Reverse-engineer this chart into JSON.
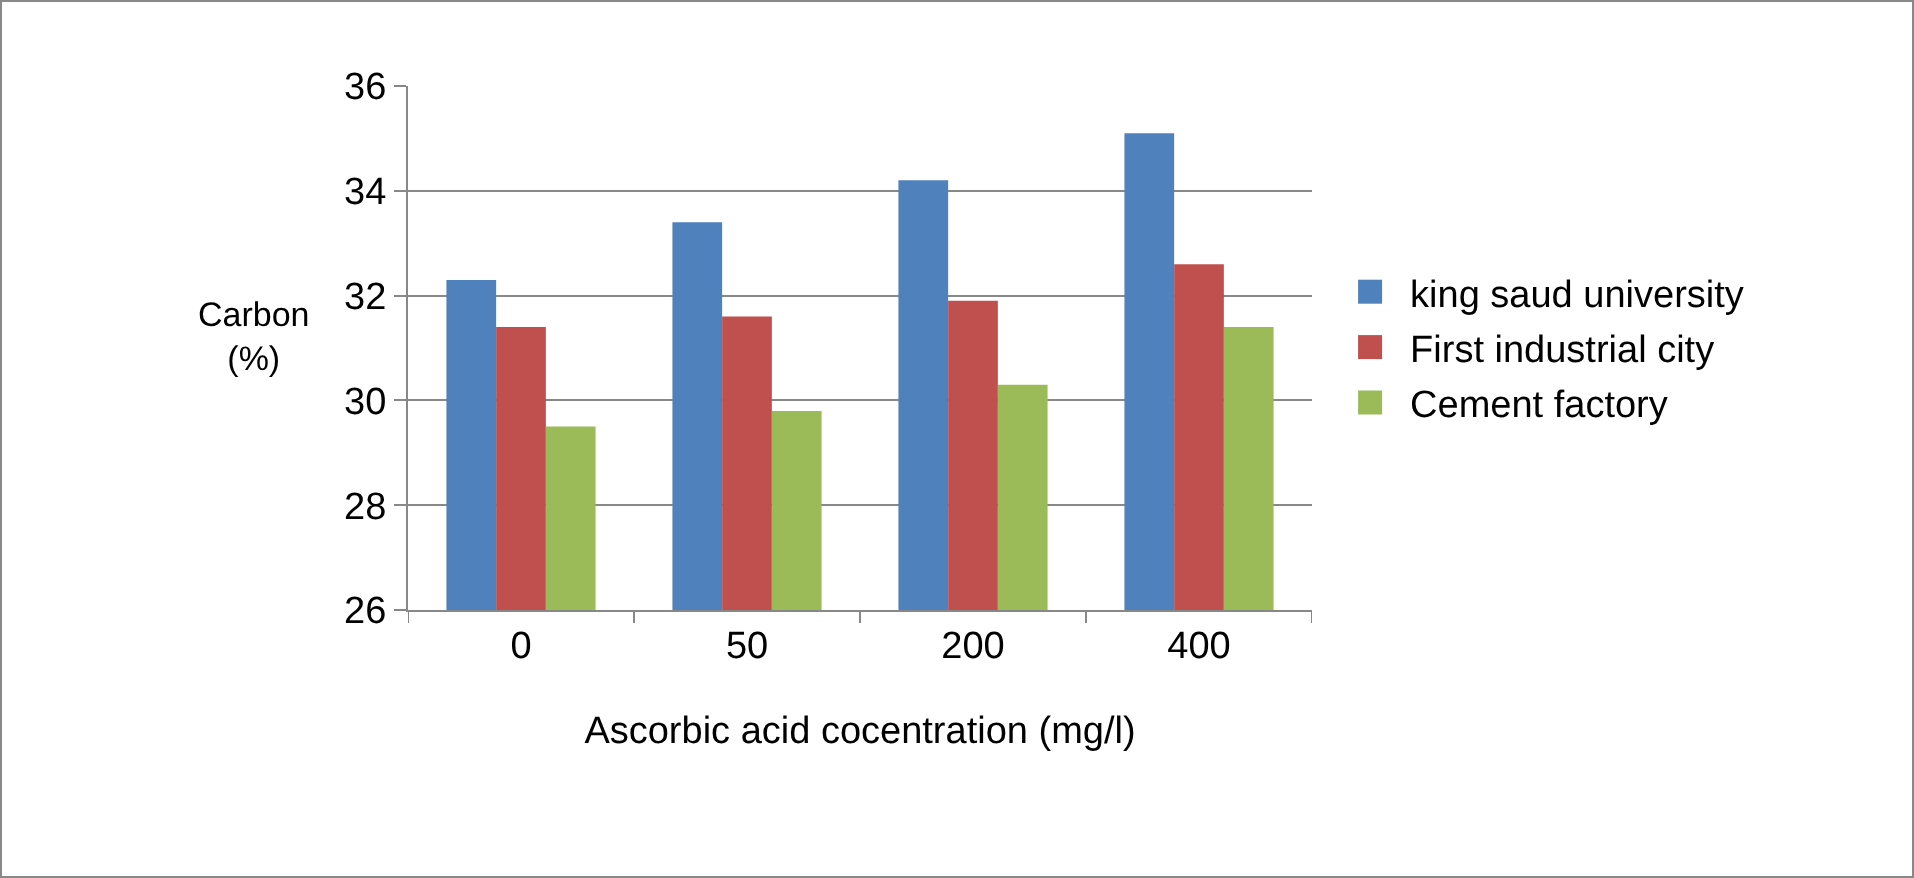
{
  "chart_data": {
    "type": "bar",
    "xlabel": "Ascorbic acid cocentration (mg/l)",
    "ylabel": "Carbon (%)",
    "categories": [
      "0",
      "50",
      "200",
      "400"
    ],
    "series": [
      {
        "name": "king saud university",
        "color": "#4f81bd",
        "values": [
          32.3,
          33.4,
          34.2,
          35.1
        ]
      },
      {
        "name": "First industrial city",
        "color": "#c0504d",
        "values": [
          31.4,
          31.6,
          31.9,
          32.6
        ]
      },
      {
        "name": "Cement factory",
        "color": "#9bbb59",
        "values": [
          29.5,
          29.8,
          30.3,
          31.4
        ]
      }
    ],
    "ylim": [
      26,
      36
    ],
    "yticks": [
      26,
      28,
      30,
      32,
      34,
      36
    ],
    "grid": "y",
    "legend": "right"
  }
}
